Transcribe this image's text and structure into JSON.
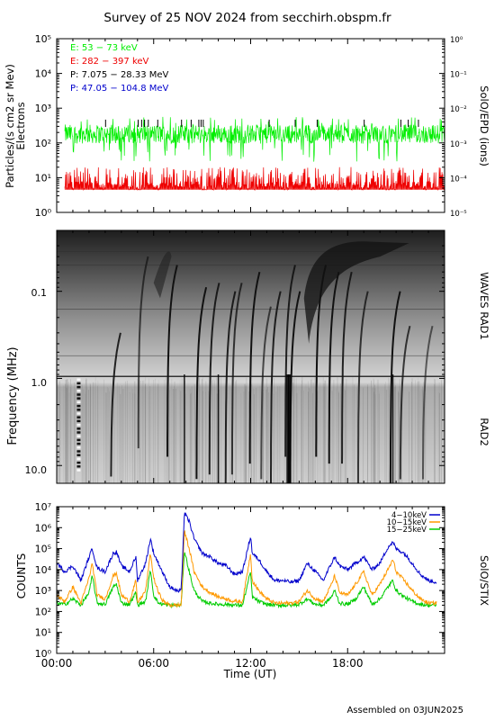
{
  "page": {
    "title": "Survey of 25 NOV 2024 from secchirh.obspm.fr",
    "footer": "Assembled on 03JUN2025",
    "xlabel": "Time (UT)",
    "time_ticks": [
      "00:00",
      "06:00",
      "12:00",
      "18:00"
    ]
  },
  "colors": {
    "green": "#00ee00",
    "red": "#ee0000",
    "black": "#000000",
    "blue": "#0000cc",
    "orange": "#ff9900"
  },
  "chart_data": [
    {
      "type": "line",
      "name": "epd",
      "ylabel": "Particles/(s cm2 sr Mev)",
      "ylabel2": "Electrons",
      "right_label": "SolO/EPD (ions)",
      "yscale": "log",
      "ylim": [
        1,
        100000
      ],
      "y2lim": [
        1e-05,
        1
      ],
      "yticks": [
        "10⁰",
        "10¹",
        "10²",
        "10³",
        "10⁴",
        "10⁵"
      ],
      "y2ticks": [
        "10⁻⁵",
        "10⁻⁴",
        "10⁻³",
        "10⁻²",
        "10⁻¹",
        "10⁰"
      ],
      "xlim_hours": [
        0,
        24
      ],
      "legend": [
        {
          "label": "E: 53 − 73 keV",
          "color": "#00ee00"
        },
        {
          "label": "E: 282 − 397 keV",
          "color": "#ee0000"
        },
        {
          "label": "P: 7.075 − 28.33 MeV",
          "color": "#000000"
        },
        {
          "label": "P: 47.05 − 104.8 MeV",
          "color": "#0000cc"
        }
      ],
      "series": [
        {
          "label": "E: 53 − 73 keV",
          "level": 180
        },
        {
          "label": "E: 282 − 397 keV",
          "level": 6
        }
      ]
    },
    {
      "type": "heatmap",
      "name": "waves",
      "ylabel": "Frequency (MHz)",
      "right_label_top": "WAVES RAD1",
      "right_label_bottom": "RAD2",
      "yscale": "log",
      "ylim": [
        16,
        0.02
      ],
      "yticks": [
        "0.1",
        "1.0",
        "10.0"
      ],
      "xlim_hours": [
        0,
        24
      ]
    },
    {
      "type": "line",
      "name": "stix",
      "ylabel": "COUNTS",
      "right_label": "SolO/STIX",
      "yscale": "log",
      "ylim": [
        1,
        10000000
      ],
      "yticks": [
        "10⁰",
        "10¹",
        "10²",
        "10³",
        "10⁴",
        "10⁵",
        "10⁶",
        "10⁷"
      ],
      "xlim_hours": [
        0,
        24
      ],
      "legend": [
        {
          "label": "4−10keV",
          "color": "#0000cc"
        },
        {
          "label": "10−15keV",
          "color": "#ff9900"
        },
        {
          "label": "15−25keV",
          "color": "#00cc00"
        }
      ],
      "series": [
        {
          "name": "4−10keV",
          "color": "#0000cc",
          "x": [
            0.0,
            0.5,
            1.0,
            1.5,
            2.0,
            2.2,
            2.5,
            3.0,
            3.5,
            3.7,
            4.0,
            4.5,
            4.9,
            5.0,
            5.5,
            5.8,
            6.0,
            6.3,
            6.6,
            7.0,
            7.5,
            7.7,
            7.9,
            8.2,
            8.5,
            9.0,
            9.5,
            10.0,
            10.5,
            11.0,
            11.5,
            12.0,
            12.1,
            12.5,
            13.0,
            13.5,
            14.0,
            14.5,
            15.0,
            15.5,
            16.0,
            16.5,
            17.0,
            17.2,
            17.5,
            18.0,
            18.5,
            19.0,
            19.5,
            20.0,
            20.5,
            20.8,
            21.0,
            21.5,
            22.0,
            22.5,
            23.0,
            23.5
          ],
          "y": [
            20000,
            8000,
            15000,
            3000,
            40000,
            100000,
            12000,
            8000,
            60000,
            70000,
            15000,
            8000,
            40000,
            3000,
            20000,
            300000,
            60000,
            20000,
            6000,
            1500,
            900,
            1000,
            5000000,
            2000000,
            300000,
            60000,
            40000,
            20000,
            15000,
            6000,
            8000,
            400000,
            60000,
            30000,
            8000,
            3000,
            3000,
            2500,
            3000,
            20000,
            8000,
            3000,
            20000,
            40000,
            15000,
            10000,
            20000,
            40000,
            10000,
            20000,
            120000,
            200000,
            100000,
            60000,
            20000,
            6000,
            3000,
            2500
          ]
        },
        {
          "name": "10−15keV",
          "color": "#ff9900",
          "x": [
            0.0,
            0.5,
            1.0,
            1.5,
            2.0,
            2.2,
            2.5,
            3.0,
            3.5,
            3.7,
            4.0,
            4.5,
            4.9,
            5.0,
            5.5,
            5.8,
            6.0,
            6.3,
            6.6,
            7.0,
            7.5,
            7.7,
            7.9,
            8.2,
            8.5,
            9.0,
            9.5,
            10.0,
            10.5,
            11.0,
            11.5,
            12.0,
            12.1,
            12.5,
            13.0,
            13.5,
            14.0,
            14.5,
            15.0,
            15.5,
            16.0,
            16.5,
            17.0,
            17.2,
            17.5,
            18.0,
            18.5,
            19.0,
            19.5,
            20.0,
            20.5,
            20.8,
            21.0,
            21.5,
            22.0,
            22.5,
            23.0,
            23.5
          ],
          "y": [
            600,
            300,
            1500,
            250,
            4000,
            20000,
            600,
            400,
            5000,
            7000,
            600,
            300,
            3000,
            250,
            1000,
            60000,
            4000,
            800,
            300,
            200,
            200,
            200,
            700000,
            100000,
            8000,
            1500,
            800,
            500,
            400,
            300,
            300,
            60000,
            3000,
            1000,
            400,
            250,
            250,
            250,
            300,
            1000,
            400,
            300,
            2000,
            5000,
            800,
            600,
            2000,
            8000,
            600,
            2000,
            10000,
            30000,
            8000,
            3000,
            1000,
            400,
            250,
            250
          ]
        },
        {
          "name": "15−25keV",
          "color": "#00cc00",
          "x": [
            0.0,
            0.5,
            1.0,
            1.5,
            2.0,
            2.2,
            2.5,
            3.0,
            3.5,
            3.7,
            4.0,
            4.5,
            4.9,
            5.0,
            5.5,
            5.8,
            6.0,
            6.3,
            6.6,
            7.0,
            7.5,
            7.7,
            7.9,
            8.2,
            8.5,
            9.0,
            9.5,
            10.0,
            10.5,
            11.0,
            11.5,
            12.0,
            12.1,
            12.5,
            13.0,
            13.5,
            14.0,
            14.5,
            15.0,
            15.5,
            16.0,
            16.5,
            17.0,
            17.2,
            17.5,
            18.0,
            18.5,
            19.0,
            19.5,
            20.0,
            20.5,
            20.8,
            21.0,
            21.5,
            22.0,
            22.5,
            23.0,
            23.5
          ],
          "y": [
            250,
            220,
            400,
            200,
            800,
            5000,
            250,
            220,
            1500,
            2000,
            250,
            220,
            800,
            200,
            300,
            10000,
            600,
            250,
            220,
            200,
            200,
            200,
            80000,
            8000,
            1000,
            300,
            250,
            220,
            220,
            200,
            200,
            8000,
            500,
            300,
            220,
            200,
            200,
            200,
            220,
            400,
            220,
            200,
            500,
            1000,
            250,
            220,
            400,
            1500,
            220,
            400,
            1500,
            3000,
            1000,
            500,
            300,
            220,
            200,
            200
          ]
        }
      ]
    }
  ]
}
